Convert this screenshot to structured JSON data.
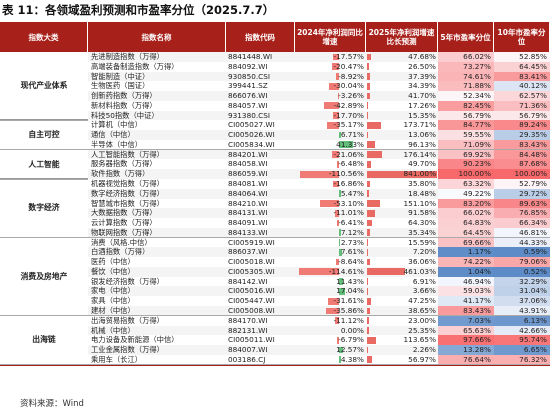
{
  "title": "表 11：各领域盈利预测和市盈率分位（2025.7.7）",
  "columns": [
    "指数大类",
    "指数名称",
    "指数代码",
    "2024年净利润同比增速",
    "2025年净利润增速比长预测",
    "5年市盈率分位",
    "10年市盈率分位"
  ],
  "groups": [
    {
      "name": "现代产业体系",
      "rows": [
        [
          "先进制造指数（万得）",
          "8841448.WI",
          "-17.57%",
          "47.68%",
          "66.02%",
          "52.85%"
        ],
        [
          "高端装备制造指数（万得）",
          "884092.WI",
          "-20.47%",
          "26.50%",
          "73.27%",
          "64.45%"
        ],
        [
          "智能制造（中证）",
          "930850.CSI",
          "-8.92%",
          "37.39%",
          "74.61%",
          "83.41%"
        ],
        [
          "生物医药（国证）",
          "399441.SZ",
          "-30.04%",
          "34.39%",
          "71.88%",
          "40.12%"
        ],
        [
          "创新药指数（万得）",
          "866076.WI",
          "-3.26%",
          "41.70%",
          "52.34%",
          "62.57%"
        ],
        [
          "新材料指数（万得）",
          "884057.WI",
          "-42.89%",
          "17.26%",
          "82.45%",
          "71.36%"
        ],
        [
          "科技50指数（中证）",
          "931380.CSI",
          "-17.70%",
          "15.35%",
          "56.79%",
          "56.79%"
        ]
      ]
    },
    {
      "name": "自主可控",
      "rows": [
        [
          "计算机（中信）",
          "CI005027.WI",
          "-35.17%",
          "173.71%",
          "84.77%",
          "89.24%"
        ],
        [
          "通信（中信）",
          "CI005026.WI",
          "6.71%",
          "13.06%",
          "59.55%",
          "29.35%"
        ],
        [
          "半导体（中信）",
          "CI005834.WI",
          "41.33%",
          "96.13%",
          "71.09%",
          "83.43%"
        ]
      ]
    },
    {
      "name": "人工智能",
      "rows": [
        [
          "人工智能指数（万得）",
          "884201.WI",
          "-21.06%",
          "176.14%",
          "69.92%",
          "84.48%"
        ],
        [
          "服务器指数（万得）",
          "884058.WI",
          "-6.48%",
          "49.70%",
          "90.23%",
          "87.68%"
        ],
        [
          "软件指数（万得）",
          "886059.WI",
          "-110.56%",
          "841.00%",
          "100.00%",
          "100.00%"
        ]
      ]
    },
    {
      "name": "数字经济",
      "rows": [
        [
          "机器视觉指数（万得）",
          "884081.WI",
          "-16.86%",
          "35.80%",
          "63.32%",
          "52.79%"
        ],
        [
          "数字经济指数（万得）",
          "884064.WI",
          "5.47%",
          "18.48%",
          "49.22%",
          "29.72%"
        ],
        [
          "智慧城市指数（万得）",
          "884210.WI",
          "-53.10%",
          "151.10%",
          "83.20%",
          "89.63%"
        ],
        [
          "大数据指数（万得）",
          "884131.WI",
          "-11.01%",
          "91.58%",
          "66.02%",
          "76.85%"
        ],
        [
          "云计算指数（万得）",
          "884091.WI",
          "-6.41%",
          "64.30%",
          "64.83%",
          "66.34%"
        ],
        [
          "物联网指数（万得）",
          "884133.WI",
          "7.12%",
          "35.34%",
          "64.45%",
          "46.81%"
        ]
      ]
    },
    {
      "name": "消费及房地产",
      "rows": [
        [
          "消费（风格.中信）",
          "CI005919.WI",
          "2.73%",
          "15.59%",
          "69.66%",
          "44.33%"
        ],
        [
          "白酒指数（万得）",
          "886037.WI",
          "7.61%",
          "7.20%",
          "1.17%",
          "0.59%"
        ],
        [
          "医药（中信）",
          "CI005018.WI",
          "-8.64%",
          "36.06%",
          "74.22%",
          "79.06%"
        ],
        [
          "餐饮（中信）",
          "CI005305.WI",
          "-114.61%",
          "461.03%",
          "1.04%",
          "0.52%"
        ],
        [
          "银发经济指数（万得）",
          "884142.WI",
          "11.43%",
          "6.91%",
          "46.94%",
          "32.29%"
        ],
        [
          "家电（中信）",
          "CI005016.WI",
          "17.04%",
          "3.66%",
          "59.03%",
          "31.04%"
        ],
        [
          "家具（中信）",
          "CI005447.WI",
          "-31.61%",
          "47.25%",
          "41.17%",
          "37.06%"
        ],
        [
          "建材（中信）",
          "CI005008.WI",
          "-35.86%",
          "38.65%",
          "83.43%",
          "43.91%"
        ]
      ]
    },
    {
      "name": "出海链",
      "rows": [
        [
          "出海贸易指数（万得）",
          "884170.WI",
          "-11.12%",
          "23.00%",
          "7.03%",
          "6.13%"
        ],
        [
          "机械（中信）",
          "882131.WI",
          "0.00%",
          "25.35%",
          "65.63%",
          "42.66%"
        ],
        [
          "电力设备及新能源（中信）",
          "CI005011.WI",
          "-6.79%",
          "113.65%",
          "97.66%",
          "95.74%"
        ],
        [
          "工业金属指数（万得）",
          "884007.WI",
          "12.57%",
          "2.26%",
          "13.28%",
          "6.65%"
        ],
        [
          "乘用车（长江）",
          "003186.CJ",
          "4.38%",
          "56.97%",
          "76.64%",
          "76.32%"
        ]
      ]
    }
  ],
  "source": "资料来源：Wind"
}
